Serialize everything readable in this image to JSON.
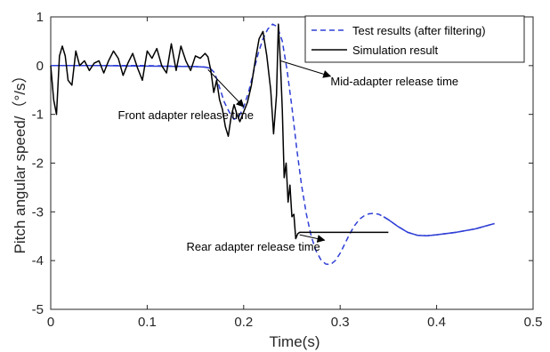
{
  "chart_data": {
    "type": "line",
    "xlabel": "Time(s)",
    "ylabel": "Pitch angular speed/（°/s）",
    "xlim": [
      0,
      0.5
    ],
    "ylim": [
      -5,
      1
    ],
    "xticks": [
      0,
      0.1,
      0.2,
      0.3,
      0.4,
      0.5
    ],
    "xtick_labels": [
      "0",
      "0.1",
      "0.2",
      "0.3",
      "0.4",
      "0.5"
    ],
    "yticks": [
      -5,
      -4,
      -3,
      -2,
      -1,
      0,
      1
    ],
    "ytick_labels": [
      "-5",
      "-4",
      "-3",
      "-2",
      "-1",
      "0",
      "1"
    ],
    "grid": false,
    "legend": "top-right",
    "colors": {
      "test": "#2f3fd6",
      "simulation": "#000000",
      "solid_blue": "#2f3fd6"
    },
    "series": [
      {
        "name": "Test results (after filtering)",
        "style": "dashed",
        "x": [
          0.0,
          0.05,
          0.1,
          0.15,
          0.16,
          0.165,
          0.17,
          0.175,
          0.18,
          0.185,
          0.19,
          0.195,
          0.2,
          0.205,
          0.21,
          0.215,
          0.22,
          0.225,
          0.23,
          0.235,
          0.24,
          0.245,
          0.25,
          0.255,
          0.26,
          0.265,
          0.27,
          0.275,
          0.28,
          0.285,
          0.29,
          0.295,
          0.3,
          0.305,
          0.31,
          0.315,
          0.32,
          0.325,
          0.33,
          0.335,
          0.34,
          0.345,
          0.35,
          0.36,
          0.37,
          0.38,
          0.39,
          0.4,
          0.42,
          0.44,
          0.46
        ],
        "y": [
          0.0,
          0.0,
          0.0,
          -0.02,
          -0.03,
          -0.05,
          -0.15,
          -0.45,
          -0.75,
          -0.95,
          -1.1,
          -1.05,
          -0.85,
          -0.55,
          -0.15,
          0.25,
          0.55,
          0.75,
          0.85,
          0.8,
          0.5,
          -0.1,
          -0.85,
          -1.7,
          -2.45,
          -3.05,
          -3.5,
          -3.8,
          -3.98,
          -4.07,
          -4.08,
          -4.0,
          -3.85,
          -3.65,
          -3.45,
          -3.28,
          -3.15,
          -3.08,
          -3.04,
          -3.03,
          -3.05,
          -3.1,
          -3.16,
          -3.3,
          -3.42,
          -3.48,
          -3.49,
          -3.47,
          -3.42,
          -3.35,
          -3.24
        ]
      },
      {
        "name": "Simulation result",
        "style": "solid",
        "x": [
          0.0,
          0.003,
          0.006,
          0.009,
          0.012,
          0.015,
          0.018,
          0.022,
          0.026,
          0.03,
          0.035,
          0.04,
          0.045,
          0.05,
          0.055,
          0.06,
          0.065,
          0.07,
          0.075,
          0.08,
          0.085,
          0.09,
          0.095,
          0.1,
          0.105,
          0.11,
          0.115,
          0.12,
          0.125,
          0.13,
          0.135,
          0.14,
          0.145,
          0.15,
          0.155,
          0.16,
          0.163,
          0.166,
          0.169,
          0.172,
          0.175,
          0.178,
          0.181,
          0.184,
          0.187,
          0.19,
          0.193,
          0.196,
          0.2,
          0.204,
          0.208,
          0.212,
          0.216,
          0.22,
          0.224,
          0.228,
          0.231,
          0.234,
          0.236,
          0.238,
          0.24,
          0.242,
          0.244,
          0.246,
          0.248,
          0.25,
          0.252,
          0.254,
          0.256,
          0.258,
          0.262,
          0.27,
          0.3,
          0.35
        ],
        "y": [
          0.0,
          -0.7,
          -1.0,
          0.2,
          0.4,
          0.2,
          -0.3,
          -0.4,
          0.3,
          0.0,
          0.1,
          -0.1,
          0.05,
          0.1,
          -0.15,
          0.1,
          0.3,
          0.15,
          -0.2,
          0.05,
          0.25,
          -0.05,
          -0.3,
          0.3,
          0.15,
          0.35,
          0.0,
          -0.15,
          0.45,
          -0.1,
          0.4,
          0.1,
          -0.1,
          0.2,
          0.15,
          0.25,
          0.18,
          -0.1,
          -0.55,
          -0.3,
          -0.7,
          -0.9,
          -1.25,
          -1.45,
          -1.05,
          -0.8,
          -1.0,
          -1.15,
          -0.95,
          -0.75,
          -0.4,
          0.1,
          0.55,
          0.7,
          0.2,
          -0.5,
          -1.4,
          -0.6,
          0.85,
          0.1,
          -0.9,
          -2.3,
          -2.0,
          -2.8,
          -2.45,
          -3.1,
          -3.05,
          -3.55,
          -3.45,
          -3.42,
          -3.42,
          -3.42,
          -3.42,
          -3.42
        ]
      },
      {
        "name": "",
        "style": "solid",
        "color": "#2f3fd6",
        "x": [
          0.0,
          0.05,
          0.1,
          0.15,
          0.16,
          0.165
        ],
        "y": [
          0.0,
          0.0,
          -0.01,
          -0.02,
          -0.03,
          -0.05
        ]
      },
      {
        "name": "",
        "style": "solid",
        "color": "#2f3fd6",
        "x": [
          0.345,
          0.35,
          0.36,
          0.37,
          0.38,
          0.39,
          0.4,
          0.42,
          0.44,
          0.46
        ],
        "y": [
          -3.1,
          -3.16,
          -3.3,
          -3.42,
          -3.48,
          -3.49,
          -3.47,
          -3.42,
          -3.35,
          -3.24
        ]
      }
    ],
    "annotations": [
      {
        "text": "Front adapter release time",
        "point": [
          0.163,
          -0.08
        ],
        "text_pos": [
          0.14,
          -1.1
        ]
      },
      {
        "text": "Mid-adapter release time",
        "point": [
          0.238,
          0.1
        ],
        "text_pos": [
          0.29,
          -0.4
        ]
      },
      {
        "text": "Rear adapter release time",
        "point": [
          0.258,
          -3.47
        ],
        "text_pos": [
          0.21,
          -3.8
        ]
      }
    ]
  }
}
